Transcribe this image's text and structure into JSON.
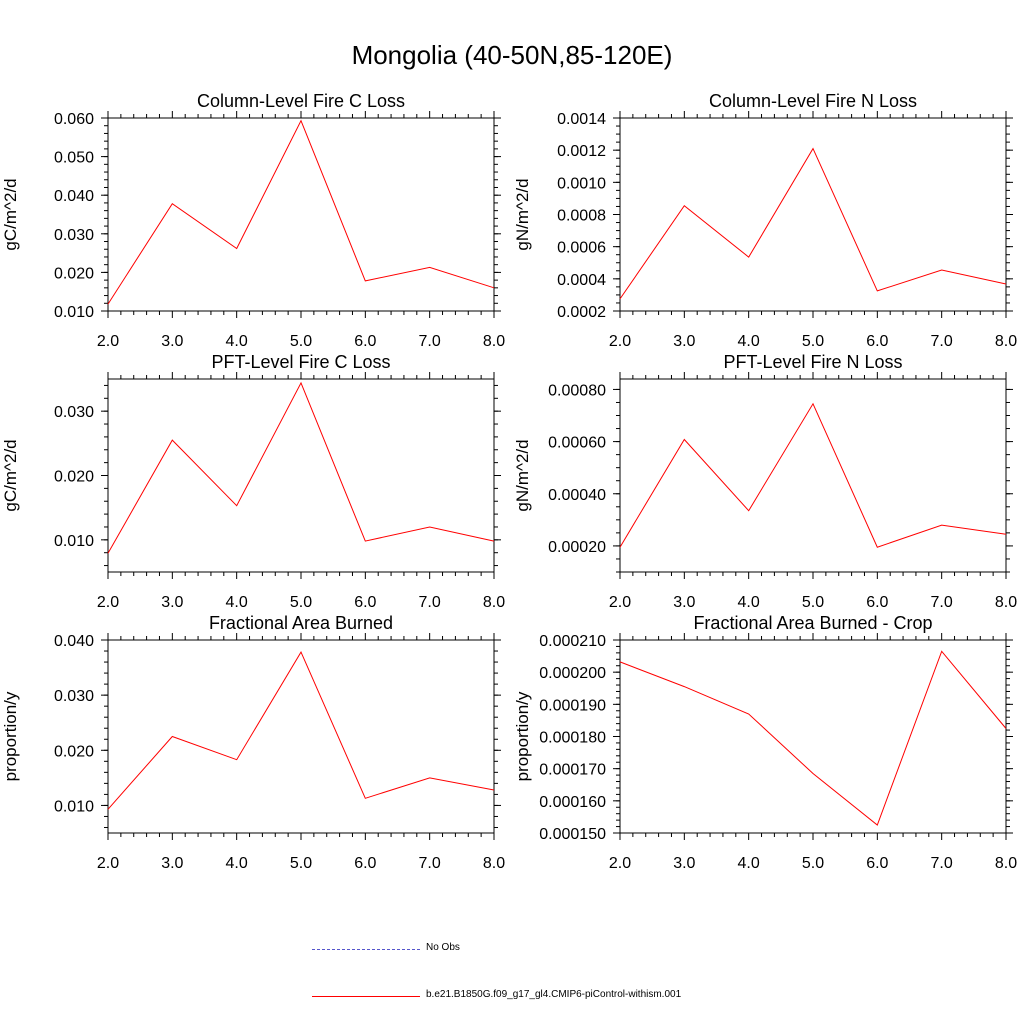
{
  "title": "Mongolia (40-50N,85-120E)",
  "colors": {
    "model": "#ff0000",
    "obs": "#5555cc",
    "axis": "#000000"
  },
  "legend": {
    "obs_label": "No Obs",
    "model_label": "b.e21.B1850G.f09_g17_gl4.CMIP6-piControl-withism.001"
  },
  "chart_data": [
    {
      "type": "line",
      "title": "Column-Level Fire C Loss",
      "ylabel": "gC/m^2/d",
      "xlabel": "",
      "x": [
        2,
        3,
        4,
        5,
        6,
        7,
        8
      ],
      "xticks": [
        "2.0",
        "3.0",
        "4.0",
        "5.0",
        "6.0",
        "7.0",
        "8.0"
      ],
      "ylim": [
        0.01,
        0.06
      ],
      "yticks": [
        0.01,
        0.02,
        0.03,
        0.04,
        0.05,
        0.06
      ],
      "yticklabels": [
        "0.010",
        "0.020",
        "0.030",
        "0.040",
        "0.050",
        "0.060"
      ],
      "yminor": 5,
      "series": [
        {
          "name": "b.e21.B1850G.f09_g17_gl4.CMIP6-piControl-withism.001",
          "values": [
            0.0118,
            0.0378,
            0.0262,
            0.0593,
            0.0178,
            0.0213,
            0.016
          ]
        }
      ]
    },
    {
      "type": "line",
      "title": "Column-Level Fire N Loss",
      "ylabel": "gN/m^2/d",
      "xlabel": "",
      "x": [
        2,
        3,
        4,
        5,
        6,
        7,
        8
      ],
      "xticks": [
        "2.0",
        "3.0",
        "4.0",
        "5.0",
        "6.0",
        "7.0",
        "8.0"
      ],
      "ylim": [
        0.0002,
        0.0014
      ],
      "yticks": [
        0.0002,
        0.0004,
        0.0006,
        0.0008,
        0.001,
        0.0012,
        0.0014
      ],
      "yticklabels": [
        "0.0002",
        "0.0004",
        "0.0006",
        "0.0008",
        "0.0010",
        "0.0012",
        "0.0014"
      ],
      "yminor": 4,
      "series": [
        {
          "name": "b.e21.B1850G.f09_g17_gl4.CMIP6-piControl-withism.001",
          "values": [
            0.000275,
            0.000855,
            0.000535,
            0.00121,
            0.000325,
            0.000455,
            0.000368
          ]
        }
      ]
    },
    {
      "type": "line",
      "title": "PFT-Level Fire C Loss",
      "ylabel": "gC/m^2/d",
      "xlabel": "",
      "x": [
        2,
        3,
        4,
        5,
        6,
        7,
        8
      ],
      "xticks": [
        "2.0",
        "3.0",
        "4.0",
        "5.0",
        "6.0",
        "7.0",
        "8.0"
      ],
      "ylim": [
        0.005,
        0.035
      ],
      "yticks": [
        0.01,
        0.02,
        0.03
      ],
      "yticklabels": [
        "0.010",
        "0.020",
        "0.030"
      ],
      "yminor": 5,
      "series": [
        {
          "name": "b.e21.B1850G.f09_g17_gl4.CMIP6-piControl-withism.001",
          "values": [
            0.0079,
            0.0255,
            0.0153,
            0.0344,
            0.0098,
            0.012,
            0.0098
          ]
        }
      ]
    },
    {
      "type": "line",
      "title": "PFT-Level Fire N Loss",
      "ylabel": "gN/m^2/d",
      "xlabel": "",
      "x": [
        2,
        3,
        4,
        5,
        6,
        7,
        8
      ],
      "xticks": [
        "2.0",
        "3.0",
        "4.0",
        "5.0",
        "6.0",
        "7.0",
        "8.0"
      ],
      "ylim": [
        0.0001,
        0.00084
      ],
      "yticks": [
        0.0002,
        0.0004,
        0.0006,
        0.0008
      ],
      "yticklabels": [
        "0.00020",
        "0.00040",
        "0.00060",
        "0.00080"
      ],
      "yminor": 4,
      "series": [
        {
          "name": "b.e21.B1850G.f09_g17_gl4.CMIP6-piControl-withism.001",
          "values": [
            0.000195,
            0.000608,
            0.000335,
            0.000745,
            0.000195,
            0.00028,
            0.000245
          ]
        }
      ]
    },
    {
      "type": "line",
      "title": "Fractional Area Burned",
      "ylabel": "proportion/y",
      "xlabel": "",
      "x": [
        2,
        3,
        4,
        5,
        6,
        7,
        8
      ],
      "xticks": [
        "2.0",
        "3.0",
        "4.0",
        "5.0",
        "6.0",
        "7.0",
        "8.0"
      ],
      "ylim": [
        0.005,
        0.04
      ],
      "yticks": [
        0.01,
        0.02,
        0.03,
        0.04
      ],
      "yticklabels": [
        "0.010",
        "0.020",
        "0.030",
        "0.040"
      ],
      "yminor": 5,
      "series": [
        {
          "name": "b.e21.B1850G.f09_g17_gl4.CMIP6-piControl-withism.001",
          "values": [
            0.0093,
            0.0225,
            0.0183,
            0.0378,
            0.0113,
            0.015,
            0.0128
          ]
        }
      ]
    },
    {
      "type": "line",
      "title": "Fractional Area Burned - Crop",
      "ylabel": "proportion/y",
      "xlabel": "",
      "x": [
        2,
        3,
        4,
        5,
        6,
        7,
        8
      ],
      "xticks": [
        "2.0",
        "3.0",
        "4.0",
        "5.0",
        "6.0",
        "7.0",
        "8.0"
      ],
      "ylim": [
        0.00015,
        0.00021
      ],
      "yticks": [
        0.00015,
        0.00016,
        0.00017,
        0.00018,
        0.00019,
        0.0002,
        0.00021
      ],
      "yticklabels": [
        "0.000150",
        "0.000160",
        "0.000170",
        "0.000180",
        "0.000190",
        "0.000200",
        "0.000210"
      ],
      "yminor": 5,
      "series": [
        {
          "name": "b.e21.B1850G.f09_g17_gl4.CMIP6-piControl-withism.001",
          "values": [
            0.0002032,
            0.0001955,
            0.000187,
            0.0001685,
            0.0001525,
            0.0002065,
            0.0001825
          ]
        }
      ]
    }
  ]
}
